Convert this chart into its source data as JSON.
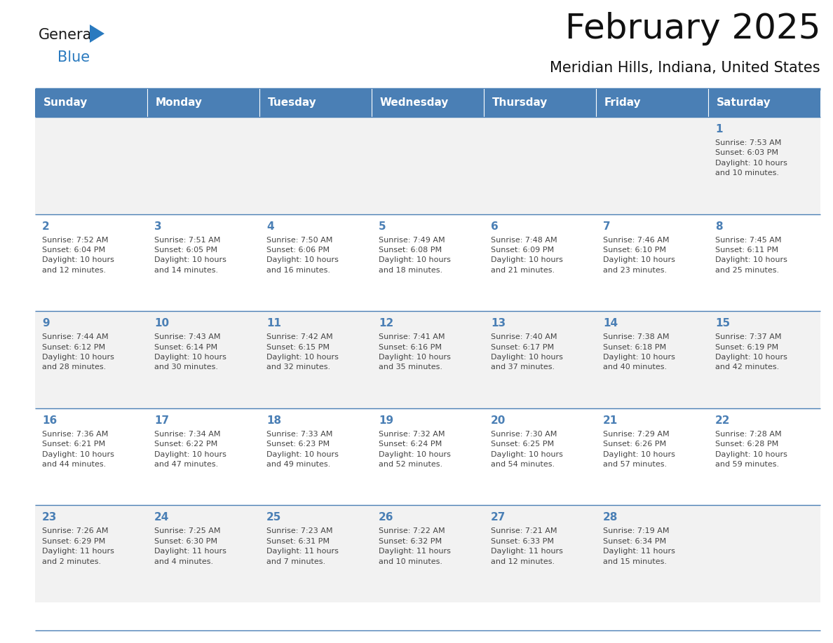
{
  "title": "February 2025",
  "subtitle": "Meridian Hills, Indiana, United States",
  "header_color": "#4a7fb5",
  "header_text_color": "#ffffff",
  "row_bg_odd": "#f2f2f2",
  "row_bg_even": "#ffffff",
  "text_color": "#444444",
  "day_number_color": "#4a7fb5",
  "line_color": "#4a7fb5",
  "separator_color": "#4a7fb5",
  "days_of_week": [
    "Sunday",
    "Monday",
    "Tuesday",
    "Wednesday",
    "Thursday",
    "Friday",
    "Saturday"
  ],
  "weeks": [
    [
      {
        "day": null,
        "info": null
      },
      {
        "day": null,
        "info": null
      },
      {
        "day": null,
        "info": null
      },
      {
        "day": null,
        "info": null
      },
      {
        "day": null,
        "info": null
      },
      {
        "day": null,
        "info": null
      },
      {
        "day": 1,
        "info": "Sunrise: 7:53 AM\nSunset: 6:03 PM\nDaylight: 10 hours\nand 10 minutes."
      }
    ],
    [
      {
        "day": 2,
        "info": "Sunrise: 7:52 AM\nSunset: 6:04 PM\nDaylight: 10 hours\nand 12 minutes."
      },
      {
        "day": 3,
        "info": "Sunrise: 7:51 AM\nSunset: 6:05 PM\nDaylight: 10 hours\nand 14 minutes."
      },
      {
        "day": 4,
        "info": "Sunrise: 7:50 AM\nSunset: 6:06 PM\nDaylight: 10 hours\nand 16 minutes."
      },
      {
        "day": 5,
        "info": "Sunrise: 7:49 AM\nSunset: 6:08 PM\nDaylight: 10 hours\nand 18 minutes."
      },
      {
        "day": 6,
        "info": "Sunrise: 7:48 AM\nSunset: 6:09 PM\nDaylight: 10 hours\nand 21 minutes."
      },
      {
        "day": 7,
        "info": "Sunrise: 7:46 AM\nSunset: 6:10 PM\nDaylight: 10 hours\nand 23 minutes."
      },
      {
        "day": 8,
        "info": "Sunrise: 7:45 AM\nSunset: 6:11 PM\nDaylight: 10 hours\nand 25 minutes."
      }
    ],
    [
      {
        "day": 9,
        "info": "Sunrise: 7:44 AM\nSunset: 6:12 PM\nDaylight: 10 hours\nand 28 minutes."
      },
      {
        "day": 10,
        "info": "Sunrise: 7:43 AM\nSunset: 6:14 PM\nDaylight: 10 hours\nand 30 minutes."
      },
      {
        "day": 11,
        "info": "Sunrise: 7:42 AM\nSunset: 6:15 PM\nDaylight: 10 hours\nand 32 minutes."
      },
      {
        "day": 12,
        "info": "Sunrise: 7:41 AM\nSunset: 6:16 PM\nDaylight: 10 hours\nand 35 minutes."
      },
      {
        "day": 13,
        "info": "Sunrise: 7:40 AM\nSunset: 6:17 PM\nDaylight: 10 hours\nand 37 minutes."
      },
      {
        "day": 14,
        "info": "Sunrise: 7:38 AM\nSunset: 6:18 PM\nDaylight: 10 hours\nand 40 minutes."
      },
      {
        "day": 15,
        "info": "Sunrise: 7:37 AM\nSunset: 6:19 PM\nDaylight: 10 hours\nand 42 minutes."
      }
    ],
    [
      {
        "day": 16,
        "info": "Sunrise: 7:36 AM\nSunset: 6:21 PM\nDaylight: 10 hours\nand 44 minutes."
      },
      {
        "day": 17,
        "info": "Sunrise: 7:34 AM\nSunset: 6:22 PM\nDaylight: 10 hours\nand 47 minutes."
      },
      {
        "day": 18,
        "info": "Sunrise: 7:33 AM\nSunset: 6:23 PM\nDaylight: 10 hours\nand 49 minutes."
      },
      {
        "day": 19,
        "info": "Sunrise: 7:32 AM\nSunset: 6:24 PM\nDaylight: 10 hours\nand 52 minutes."
      },
      {
        "day": 20,
        "info": "Sunrise: 7:30 AM\nSunset: 6:25 PM\nDaylight: 10 hours\nand 54 minutes."
      },
      {
        "day": 21,
        "info": "Sunrise: 7:29 AM\nSunset: 6:26 PM\nDaylight: 10 hours\nand 57 minutes."
      },
      {
        "day": 22,
        "info": "Sunrise: 7:28 AM\nSunset: 6:28 PM\nDaylight: 10 hours\nand 59 minutes."
      }
    ],
    [
      {
        "day": 23,
        "info": "Sunrise: 7:26 AM\nSunset: 6:29 PM\nDaylight: 11 hours\nand 2 minutes."
      },
      {
        "day": 24,
        "info": "Sunrise: 7:25 AM\nSunset: 6:30 PM\nDaylight: 11 hours\nand 4 minutes."
      },
      {
        "day": 25,
        "info": "Sunrise: 7:23 AM\nSunset: 6:31 PM\nDaylight: 11 hours\nand 7 minutes."
      },
      {
        "day": 26,
        "info": "Sunrise: 7:22 AM\nSunset: 6:32 PM\nDaylight: 11 hours\nand 10 minutes."
      },
      {
        "day": 27,
        "info": "Sunrise: 7:21 AM\nSunset: 6:33 PM\nDaylight: 11 hours\nand 12 minutes."
      },
      {
        "day": 28,
        "info": "Sunrise: 7:19 AM\nSunset: 6:34 PM\nDaylight: 11 hours\nand 15 minutes."
      },
      {
        "day": null,
        "info": null
      }
    ]
  ],
  "logo_general_color": "#1a1a1a",
  "logo_blue_color": "#2a7abf",
  "logo_triangle_color": "#2a7abf",
  "title_fontsize": 36,
  "subtitle_fontsize": 15,
  "header_fontsize": 11,
  "day_number_fontsize": 11,
  "info_fontsize": 8
}
